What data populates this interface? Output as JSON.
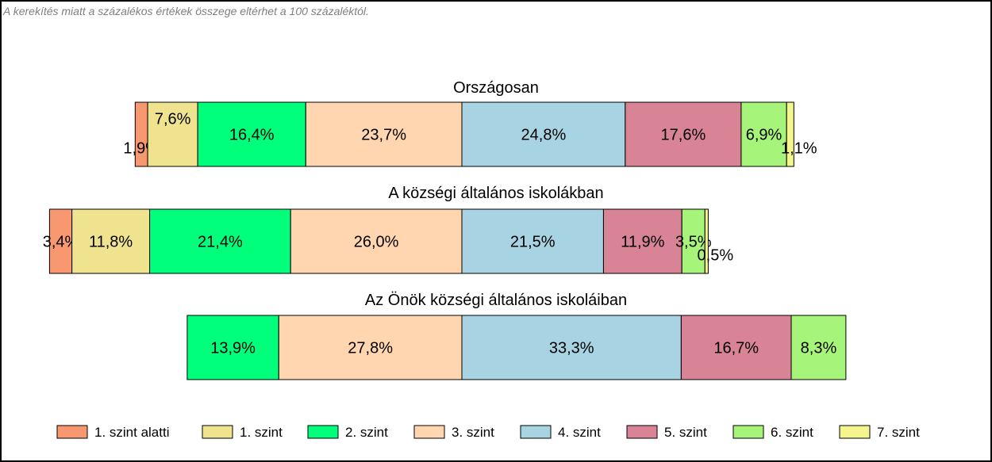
{
  "note": "A kerekítés miatt a  százalékos értékek összege eltérhet a 100 százaléktól.",
  "chart_data": {
    "type": "bar",
    "orientation": "horizontal-stacked",
    "unit": "%",
    "categories": [
      "1. szint alatti",
      "1. szint",
      "2. szint",
      "3. szint",
      "4. szint",
      "5. szint",
      "6. szint",
      "7. szint"
    ],
    "colors": [
      "#f79871",
      "#efe38f",
      "#00ff7a",
      "#ffd6b0",
      "#a7d3e2",
      "#d98396",
      "#a6f57a",
      "#f4f58c"
    ],
    "labels_shown": [
      [
        "1,9%",
        "7,6%",
        "16,4%",
        "23,7%",
        "24,8%",
        "17,6%",
        "6,9%",
        "1,1%"
      ],
      [
        "3,4%",
        "11,8%",
        "21,4%",
        "26,0%",
        "21,5%",
        "11,9%",
        "3,5%",
        "0,5%"
      ],
      [
        "",
        "",
        "13,9%",
        "27,8%",
        "33,3%",
        "16,7%",
        "8,3%",
        ""
      ]
    ],
    "series": [
      {
        "name": "Országosan",
        "values": [
          1.9,
          7.6,
          16.4,
          23.7,
          24.8,
          17.6,
          6.9,
          1.1
        ]
      },
      {
        "name": "A községi általános iskolákban",
        "values": [
          3.4,
          11.8,
          21.4,
          26.0,
          21.5,
          11.9,
          3.5,
          0.5
        ]
      },
      {
        "name": "Az Önök községi általános iskoláiban",
        "values": [
          0,
          0,
          13.9,
          27.8,
          33.3,
          16.7,
          8.3,
          0
        ]
      }
    ],
    "legend_position": "bottom",
    "grid": false
  }
}
